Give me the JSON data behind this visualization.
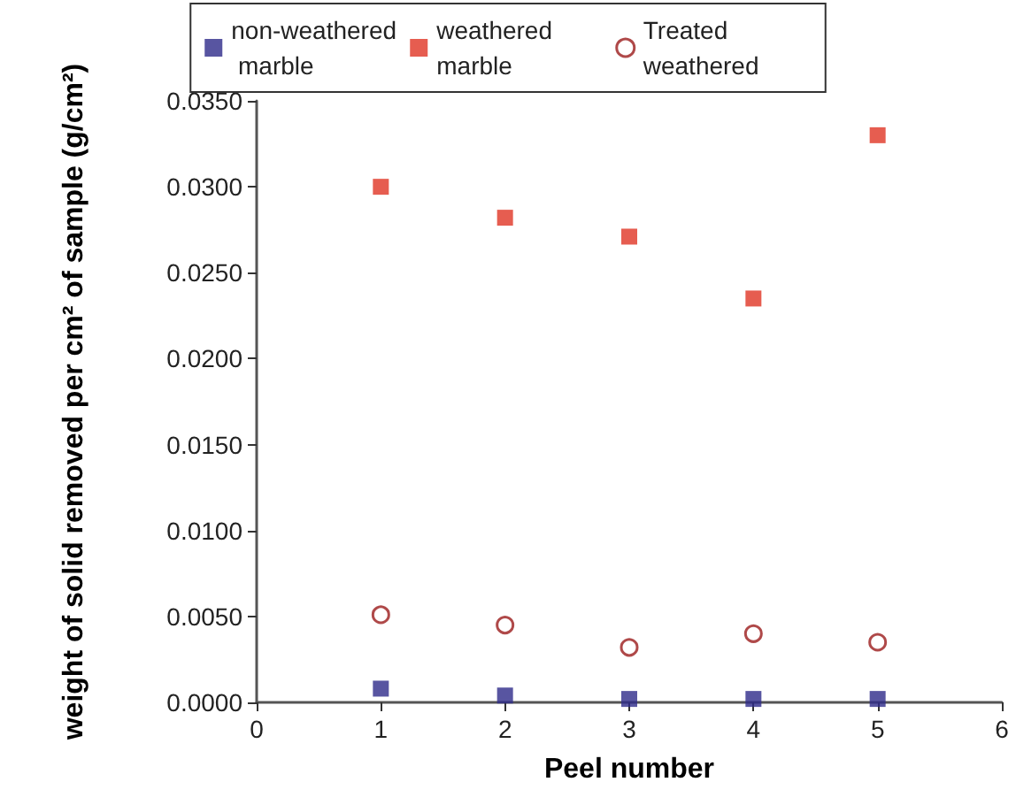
{
  "chart_data": {
    "type": "scatter",
    "xlabel": "Peel number",
    "ylabel": "weight of solid removed per cm² of sample (g/cm²)",
    "x": [
      1,
      2,
      3,
      4,
      5
    ],
    "series": [
      {
        "name": "non-weathered marble",
        "color": "#2e2a8a",
        "marker": "square",
        "values": [
          0.0008,
          0.0004,
          0.0002,
          0.0002,
          0.0002
        ]
      },
      {
        "name": "weathered marble",
        "color": "#e03424",
        "marker": "square",
        "values": [
          0.03,
          0.0282,
          0.0271,
          0.0235,
          0.033
        ]
      },
      {
        "name": "Treated weathered",
        "color": "#9b1c1c",
        "marker": "circle",
        "values": [
          0.0051,
          0.0045,
          0.0032,
          0.004,
          0.0035
        ]
      }
    ],
    "xlim": [
      0,
      6
    ],
    "xticks": [
      0,
      1,
      2,
      3,
      4,
      5,
      6
    ],
    "ylim": [
      0,
      0.035
    ],
    "yticks": [
      {
        "value": 0,
        "label": "0.0000"
      },
      {
        "value": 0.005,
        "label": "0.0050"
      },
      {
        "value": 0.01,
        "label": "0.0100"
      },
      {
        "value": 0.015,
        "label": "0.0150"
      },
      {
        "value": 0.02,
        "label": "0.0200"
      },
      {
        "value": 0.025,
        "label": "0.0250"
      },
      {
        "value": 0.03,
        "label": "0.0300"
      },
      {
        "value": 0.035,
        "label": "0.0350"
      }
    ],
    "grid": false,
    "legend": "top"
  }
}
